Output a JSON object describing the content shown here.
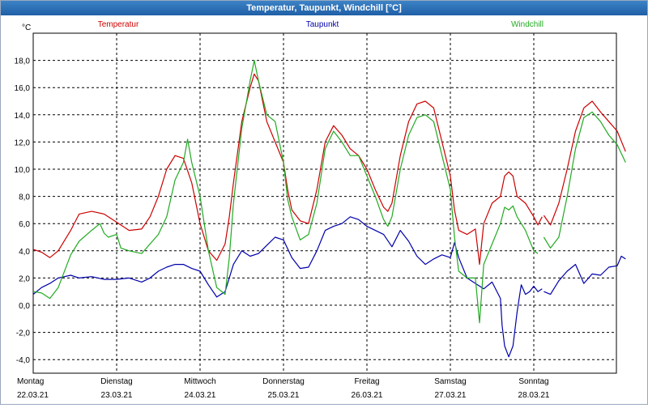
{
  "window": {
    "title": "Temperatur, Taupunkt, Windchill [°C]"
  },
  "colors": {
    "temperature": "#cc0000",
    "dewpoint": "#0000aa",
    "windchill": "#22aa22",
    "grid": "#000000"
  },
  "chart_data": {
    "type": "line",
    "title": "Temperatur, Taupunkt, Windchill [°C]",
    "ylabel": "°C",
    "ylim": [
      -5,
      20
    ],
    "yticks": [
      -4,
      -2,
      0,
      2,
      4,
      6,
      8,
      10,
      12,
      14,
      16,
      18
    ],
    "ytick_labels": [
      "-4,0",
      "-2,0",
      "0,0",
      "2,0",
      "4,0",
      "6,0",
      "8,0",
      "10,0",
      "12,0",
      "14,0",
      "16,0",
      "18,0"
    ],
    "xlim": [
      0,
      7.12
    ],
    "x_unit": "days since 22.03.21 00:00",
    "days": [
      {
        "weekday": "Montag",
        "date": "22.03.21",
        "x": 0
      },
      {
        "weekday": "Dienstag",
        "date": "23.03.21",
        "x": 1
      },
      {
        "weekday": "Mittwoch",
        "date": "24.03.21",
        "x": 2
      },
      {
        "weekday": "Donnerstag",
        "date": "25.03.21",
        "x": 3
      },
      {
        "weekday": "Freitag",
        "date": "26.03.21",
        "x": 4
      },
      {
        "weekday": "Samstag",
        "date": "27.03.21",
        "x": 5
      },
      {
        "weekday": "Sonntag",
        "date": "28.03.21",
        "x": 6
      }
    ],
    "series": [
      {
        "name": "Temperatur",
        "key": "temperature",
        "segments": [
          [
            [
              0,
              4.1
            ],
            [
              0.1,
              3.9
            ],
            [
              0.2,
              3.5
            ],
            [
              0.3,
              4.0
            ],
            [
              0.45,
              5.5
            ],
            [
              0.55,
              6.7
            ],
            [
              0.7,
              6.9
            ],
            [
              0.85,
              6.7
            ],
            [
              1.0,
              6.1
            ],
            [
              1.15,
              5.5
            ],
            [
              1.3,
              5.6
            ],
            [
              1.4,
              6.5
            ],
            [
              1.5,
              8.0
            ],
            [
              1.6,
              10.0
            ],
            [
              1.7,
              11.0
            ],
            [
              1.8,
              10.8
            ],
            [
              1.9,
              9.0
            ],
            [
              2.0,
              6.0
            ],
            [
              2.1,
              4.0
            ],
            [
              2.2,
              3.3
            ],
            [
              2.3,
              4.5
            ],
            [
              2.35,
              6.5
            ],
            [
              2.4,
              9.0
            ],
            [
              2.5,
              13.5
            ],
            [
              2.6,
              16.0
            ],
            [
              2.65,
              17.0
            ],
            [
              2.7,
              16.5
            ],
            [
              2.8,
              13.5
            ],
            [
              2.9,
              12.0
            ],
            [
              3.0,
              10.5
            ],
            [
              3.05,
              8.5
            ],
            [
              3.1,
              7.0
            ],
            [
              3.2,
              6.2
            ],
            [
              3.3,
              6.0
            ],
            [
              3.4,
              8.5
            ],
            [
              3.5,
              12.0
            ],
            [
              3.6,
              13.2
            ],
            [
              3.7,
              12.5
            ],
            [
              3.8,
              11.5
            ],
            [
              3.9,
              11.0
            ],
            [
              4.0,
              10.0
            ],
            [
              4.1,
              8.5
            ],
            [
              4.2,
              7.2
            ],
            [
              4.25,
              6.9
            ],
            [
              4.3,
              7.5
            ],
            [
              4.4,
              11.0
            ],
            [
              4.5,
              13.5
            ],
            [
              4.6,
              14.8
            ],
            [
              4.7,
              15.0
            ],
            [
              4.8,
              14.5
            ],
            [
              4.9,
              12.0
            ],
            [
              5.0,
              9.5
            ],
            [
              5.05,
              7.0
            ],
            [
              5.1,
              5.5
            ],
            [
              5.2,
              5.2
            ],
            [
              5.3,
              5.6
            ],
            [
              5.35,
              3.0
            ],
            [
              5.4,
              6.0
            ],
            [
              5.5,
              7.5
            ],
            [
              5.6,
              8.0
            ],
            [
              5.65,
              9.5
            ],
            [
              5.7,
              9.8
            ],
            [
              5.75,
              9.5
            ],
            [
              5.8,
              8.0
            ],
            [
              5.9,
              7.5
            ],
            [
              6.0,
              6.5
            ],
            [
              6.05,
              5.9
            ],
            [
              6.1,
              6.5
            ]
          ],
          [
            [
              6.12,
              6.6
            ],
            [
              6.2,
              5.9
            ],
            [
              6.3,
              7.5
            ],
            [
              6.4,
              10.0
            ],
            [
              6.5,
              12.8
            ],
            [
              6.6,
              14.5
            ],
            [
              6.7,
              15.0
            ],
            [
              6.8,
              14.2
            ],
            [
              6.9,
              13.5
            ],
            [
              7.0,
              12.8
            ],
            [
              7.1,
              11.3
            ]
          ]
        ]
      },
      {
        "name": "Taupunkt",
        "key": "dewpoint",
        "segments": [
          [
            [
              0,
              0.8
            ],
            [
              0.1,
              1.3
            ],
            [
              0.2,
              1.6
            ],
            [
              0.3,
              2.0
            ],
            [
              0.45,
              2.2
            ],
            [
              0.55,
              2.0
            ],
            [
              0.7,
              2.1
            ],
            [
              0.85,
              1.9
            ],
            [
              1.0,
              1.9
            ],
            [
              1.15,
              2.0
            ],
            [
              1.3,
              1.7
            ],
            [
              1.4,
              2.0
            ],
            [
              1.5,
              2.5
            ],
            [
              1.6,
              2.8
            ],
            [
              1.7,
              3.0
            ],
            [
              1.8,
              3.0
            ],
            [
              1.9,
              2.7
            ],
            [
              2.0,
              2.5
            ],
            [
              2.1,
              1.5
            ],
            [
              2.2,
              0.6
            ],
            [
              2.3,
              1.0
            ],
            [
              2.4,
              3.0
            ],
            [
              2.5,
              4.0
            ],
            [
              2.6,
              3.6
            ],
            [
              2.7,
              3.8
            ],
            [
              2.8,
              4.4
            ],
            [
              2.9,
              5.0
            ],
            [
              3.0,
              4.8
            ],
            [
              3.1,
              3.5
            ],
            [
              3.2,
              2.7
            ],
            [
              3.3,
              2.8
            ],
            [
              3.4,
              4.0
            ],
            [
              3.5,
              5.5
            ],
            [
              3.6,
              5.8
            ],
            [
              3.7,
              6.0
            ],
            [
              3.8,
              6.5
            ],
            [
              3.9,
              6.3
            ],
            [
              4.0,
              5.8
            ],
            [
              4.1,
              5.5
            ],
            [
              4.2,
              5.2
            ],
            [
              4.3,
              4.3
            ],
            [
              4.4,
              5.5
            ],
            [
              4.5,
              4.7
            ],
            [
              4.6,
              3.6
            ],
            [
              4.7,
              3.0
            ],
            [
              4.8,
              3.4
            ],
            [
              4.9,
              3.7
            ],
            [
              5.0,
              3.5
            ],
            [
              5.05,
              4.6
            ],
            [
              5.1,
              3.5
            ],
            [
              5.2,
              2.0
            ],
            [
              5.3,
              1.6
            ],
            [
              5.4,
              1.2
            ],
            [
              5.5,
              1.7
            ],
            [
              5.6,
              0.5
            ],
            [
              5.62,
              -1.5
            ],
            [
              5.65,
              -3.0
            ],
            [
              5.7,
              -3.8
            ],
            [
              5.75,
              -3.0
            ],
            [
              5.8,
              -0.5
            ],
            [
              5.85,
              1.5
            ],
            [
              5.9,
              0.8
            ],
            [
              5.95,
              1.0
            ],
            [
              6.0,
              1.4
            ],
            [
              6.05,
              1.0
            ],
            [
              6.1,
              1.2
            ]
          ],
          [
            [
              6.12,
              1.0
            ],
            [
              6.2,
              0.8
            ],
            [
              6.3,
              1.8
            ],
            [
              6.4,
              2.5
            ],
            [
              6.5,
              3.0
            ],
            [
              6.6,
              1.6
            ],
            [
              6.7,
              2.3
            ],
            [
              6.8,
              2.2
            ],
            [
              6.9,
              2.8
            ],
            [
              7.0,
              2.9
            ],
            [
              7.05,
              3.6
            ],
            [
              7.1,
              3.4
            ]
          ]
        ]
      },
      {
        "name": "Windchill",
        "key": "windchill",
        "segments": [
          [
            [
              0,
              1.0
            ],
            [
              0.1,
              0.9
            ],
            [
              0.2,
              0.5
            ],
            [
              0.3,
              1.3
            ],
            [
              0.45,
              3.7
            ],
            [
              0.55,
              4.7
            ],
            [
              0.7,
              5.5
            ],
            [
              0.8,
              6.0
            ],
            [
              0.85,
              5.3
            ],
            [
              0.9,
              5.0
            ],
            [
              1.0,
              5.2
            ],
            [
              1.05,
              4.2
            ],
            [
              1.15,
              4.0
            ],
            [
              1.3,
              3.8
            ],
            [
              1.4,
              4.5
            ],
            [
              1.5,
              5.2
            ],
            [
              1.6,
              6.5
            ],
            [
              1.7,
              9.2
            ],
            [
              1.8,
              10.5
            ],
            [
              1.85,
              12.2
            ],
            [
              1.9,
              10.5
            ],
            [
              2.0,
              8.0
            ],
            [
              2.1,
              4.0
            ],
            [
              2.2,
              1.3
            ],
            [
              2.3,
              0.8
            ],
            [
              2.35,
              3.5
            ],
            [
              2.4,
              7.5
            ],
            [
              2.5,
              13.0
            ],
            [
              2.6,
              16.5
            ],
            [
              2.65,
              18.0
            ],
            [
              2.7,
              16.5
            ],
            [
              2.8,
              14.0
            ],
            [
              2.9,
              13.5
            ],
            [
              3.0,
              10.5
            ],
            [
              3.05,
              7.8
            ],
            [
              3.1,
              6.5
            ],
            [
              3.2,
              4.8
            ],
            [
              3.3,
              5.2
            ],
            [
              3.4,
              7.5
            ],
            [
              3.5,
              11.5
            ],
            [
              3.6,
              12.8
            ],
            [
              3.7,
              12.0
            ],
            [
              3.8,
              11.0
            ],
            [
              3.9,
              11.0
            ],
            [
              4.0,
              9.5
            ],
            [
              4.1,
              8.0
            ],
            [
              4.2,
              6.3
            ],
            [
              4.25,
              5.8
            ],
            [
              4.3,
              6.5
            ],
            [
              4.4,
              10.0
            ],
            [
              4.5,
              12.5
            ],
            [
              4.6,
              13.8
            ],
            [
              4.7,
              14.0
            ],
            [
              4.8,
              13.5
            ],
            [
              4.9,
              11.0
            ],
            [
              5.0,
              8.5
            ],
            [
              5.05,
              5.0
            ],
            [
              5.1,
              2.5
            ],
            [
              5.2,
              2.0
            ],
            [
              5.3,
              2.0
            ],
            [
              5.35,
              -1.3
            ],
            [
              5.4,
              3.0
            ],
            [
              5.5,
              4.5
            ],
            [
              5.6,
              6.0
            ],
            [
              5.65,
              7.2
            ],
            [
              5.7,
              7.0
            ],
            [
              5.75,
              7.3
            ],
            [
              5.8,
              6.5
            ],
            [
              5.9,
              5.5
            ],
            [
              6.0,
              4.0
            ],
            [
              6.05,
              3.8
            ]
          ],
          [
            [
              6.12,
              5.0
            ],
            [
              6.2,
              4.2
            ],
            [
              6.3,
              5.0
            ],
            [
              6.4,
              8.0
            ],
            [
              6.5,
              11.5
            ],
            [
              6.6,
              13.8
            ],
            [
              6.7,
              14.2
            ],
            [
              6.8,
              13.5
            ],
            [
              6.9,
              12.5
            ],
            [
              7.0,
              11.8
            ],
            [
              7.1,
              10.5
            ]
          ]
        ]
      }
    ]
  }
}
